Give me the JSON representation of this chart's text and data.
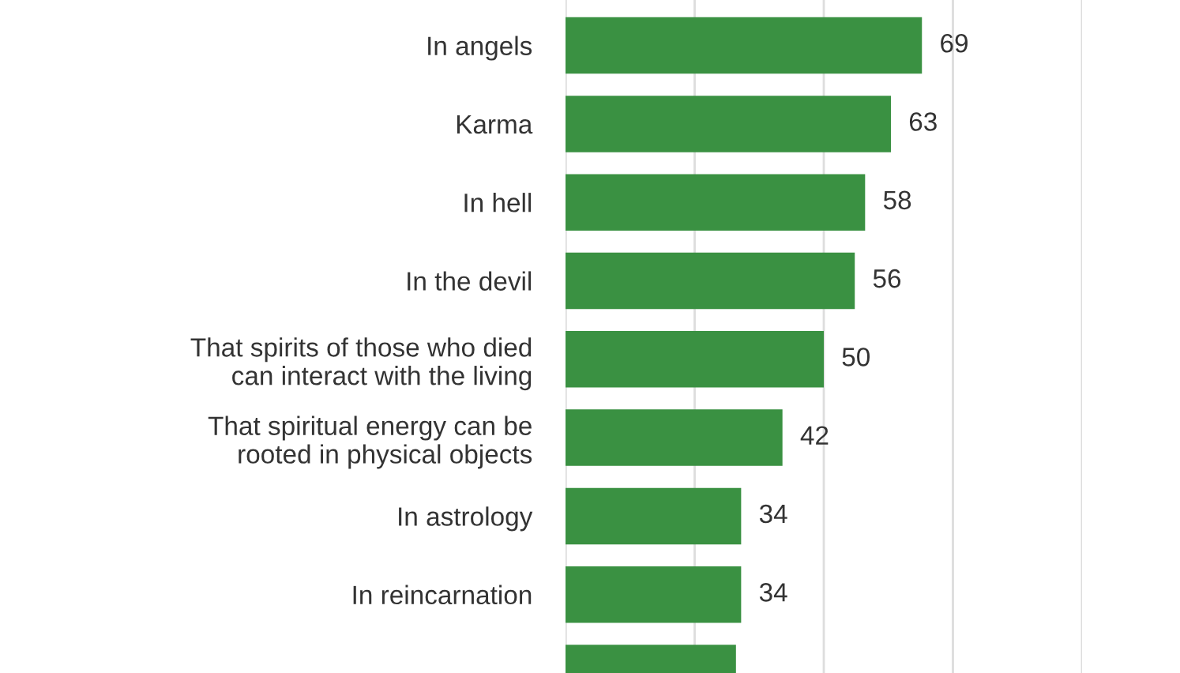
{
  "chart_data": {
    "type": "bar",
    "orientation": "horizontal",
    "categories": [
      "In angels",
      "Karma",
      "In hell",
      "In the devil",
      "That spirits of those who died\ncan interact with the living",
      "That spiritual energy can be\nrooted in physical objects",
      "In astrology",
      "In reincarnation",
      null
    ],
    "values": [
      69,
      63,
      58,
      56,
      50,
      42,
      34,
      34,
      33
    ],
    "value_labels": [
      "69",
      "63",
      "58",
      "56",
      "50",
      "42",
      "34",
      "34",
      null
    ],
    "color": "#3a9142",
    "xlim": [
      0,
      100
    ],
    "xticks": [
      {
        "value": 0,
        "label": null
      },
      {
        "value": 25,
        "label": null
      },
      {
        "value": 50,
        "label": null
      },
      {
        "value": 75,
        "label": null
      },
      {
        "value": 100,
        "label": null
      }
    ],
    "grid": "x",
    "tick_labels": "y"
  }
}
